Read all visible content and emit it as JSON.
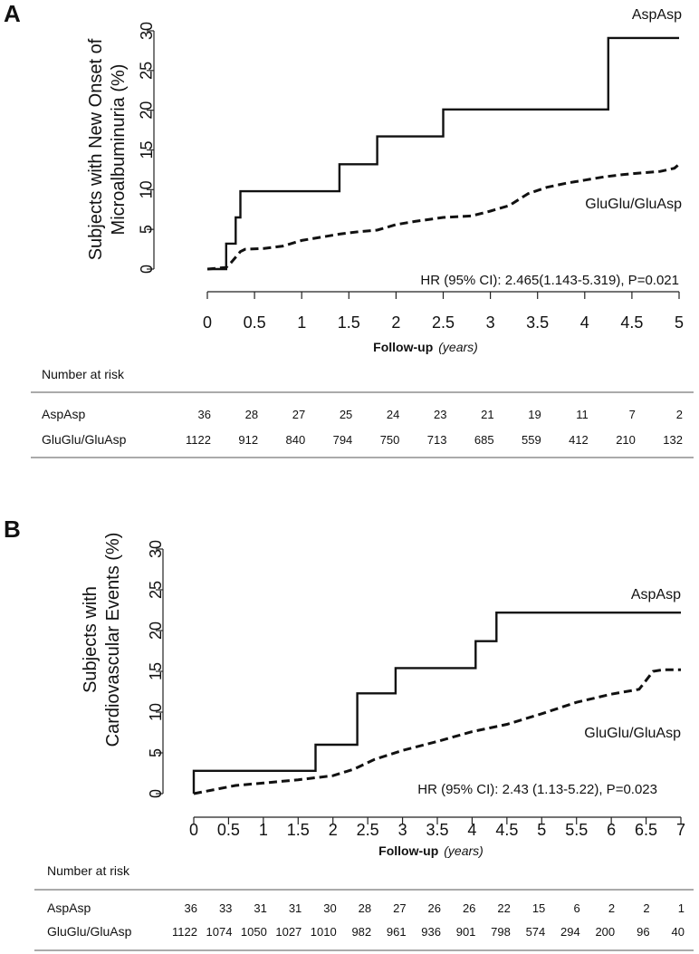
{
  "chart_data": [
    {
      "type": "line",
      "panel": "A",
      "ylabel_lines": [
        "Subjects with New Onset of",
        "Microalbuminuria (%)"
      ],
      "xlabel": "Follow-up",
      "xlabel_unit": "(years)",
      "xlim": [
        0,
        5
      ],
      "ylim": [
        0,
        30
      ],
      "xticks": [
        "0",
        "0.5",
        "1",
        "1.5",
        "2",
        "2.5",
        "3",
        "3.5",
        "4",
        "4.5",
        "5"
      ],
      "yticks": [
        "0",
        "5",
        "10",
        "15",
        "20",
        "25",
        "30"
      ],
      "annotation": "HR (95% CI): 2.465(1.143-5.319), P=0.021",
      "series": [
        {
          "name": "AspAsp",
          "style": "solid",
          "x": [
            0,
            0.2,
            0.2,
            0.3,
            0.3,
            0.35,
            0.35,
            1.4,
            1.4,
            1.8,
            1.8,
            2.5,
            2.5,
            4.25,
            4.25,
            5
          ],
          "y": [
            0,
            0,
            3.2,
            3.2,
            6.5,
            6.5,
            9.8,
            9.8,
            13.2,
            13.2,
            16.7,
            16.7,
            20.1,
            20.1,
            29.1,
            29.1
          ]
        },
        {
          "name": "GluGlu/GluAsp",
          "style": "dashed",
          "x": [
            0,
            0.2,
            0.25,
            0.3,
            0.35,
            0.4,
            0.6,
            0.8,
            1.0,
            1.2,
            1.4,
            1.6,
            1.8,
            2.0,
            2.2,
            2.5,
            2.8,
            3.0,
            3.2,
            3.4,
            3.6,
            3.8,
            4.0,
            4.2,
            4.4,
            4.6,
            4.8,
            4.95,
            5.0
          ],
          "y": [
            0,
            0.2,
            0.8,
            1.5,
            2.2,
            2.5,
            2.6,
            2.9,
            3.6,
            4.0,
            4.4,
            4.7,
            4.9,
            5.6,
            6.0,
            6.5,
            6.7,
            7.3,
            8.0,
            9.5,
            10.3,
            10.8,
            11.2,
            11.6,
            11.9,
            12.1,
            12.3,
            12.7,
            13.2
          ]
        }
      ],
      "risk_table": {
        "title": "Number at risk",
        "rows": [
          {
            "label": "AspAsp",
            "values": [
              "36",
              "28",
              "27",
              "25",
              "24",
              "23",
              "21",
              "19",
              "11",
              "7",
              "2"
            ]
          },
          {
            "label": "GluGlu/GluAsp",
            "values": [
              "1122",
              "912",
              "840",
              "794",
              "750",
              "713",
              "685",
              "559",
              "412",
              "210",
              "132"
            ]
          }
        ]
      }
    },
    {
      "type": "line",
      "panel": "B",
      "ylabel_lines": [
        "Subjects with",
        "Cardiovascular Events (%)"
      ],
      "xlabel": "Follow-up",
      "xlabel_unit": "(years)",
      "xlim": [
        0,
        7
      ],
      "ylim": [
        0,
        30
      ],
      "xticks": [
        "0",
        "0.5",
        "1",
        "1.5",
        "2",
        "2.5",
        "3",
        "3.5",
        "4",
        "4.5",
        "5",
        "5.5",
        "6",
        "6.5",
        "7"
      ],
      "yticks": [
        "0",
        "5",
        "10",
        "15",
        "20",
        "25",
        "30"
      ],
      "annotation": "HR (95% CI): 2.43 (1.13-5.22), P=0.023",
      "series": [
        {
          "name": "AspAsp",
          "style": "solid",
          "x": [
            0,
            0,
            1.75,
            1.75,
            2.35,
            2.35,
            2.9,
            2.9,
            4.05,
            4.05,
            4.35,
            4.35,
            7.0
          ],
          "y": [
            0,
            2.8,
            2.8,
            6.0,
            6.0,
            12.3,
            12.3,
            15.4,
            15.4,
            18.7,
            18.7,
            22.2,
            22.2
          ]
        },
        {
          "name": "GluGlu/GluAsp",
          "style": "dashed",
          "x": [
            0,
            0.3,
            0.6,
            1.0,
            1.5,
            2.0,
            2.3,
            2.6,
            3.0,
            3.5,
            4.0,
            4.5,
            5.0,
            5.5,
            6.0,
            6.4,
            6.6,
            6.75,
            7.0
          ],
          "y": [
            0,
            0.5,
            1.0,
            1.3,
            1.7,
            2.2,
            3.0,
            4.2,
            5.3,
            6.4,
            7.6,
            8.5,
            9.8,
            11.2,
            12.2,
            12.8,
            15.0,
            15.2,
            15.2
          ]
        }
      ],
      "risk_table": {
        "title": "Number at risk",
        "rows": [
          {
            "label": "AspAsp",
            "values": [
              "36",
              "33",
              "31",
              "31",
              "30",
              "28",
              "27",
              "26",
              "26",
              "22",
              "15",
              "6",
              "2",
              "2",
              "1"
            ]
          },
          {
            "label": "GluGlu/GluAsp",
            "values": [
              "1122",
              "1074",
              "1050",
              "1027",
              "1010",
              "982",
              "961",
              "936",
              "901",
              "798",
              "574",
              "294",
              "200",
              "96",
              "40"
            ]
          }
        ]
      }
    }
  ]
}
